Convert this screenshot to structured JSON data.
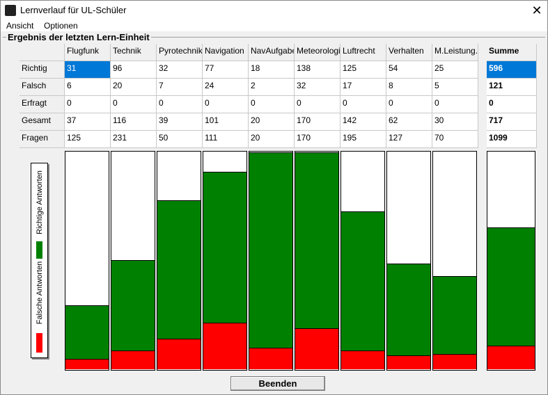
{
  "window": {
    "title": "Lernverlauf für UL-Schüler"
  },
  "menu": [
    "Ansicht",
    "Optionen"
  ],
  "group_title": "Ergebnis der letzten Lern-Einheit",
  "table": {
    "columns": [
      "Flugfunk",
      "Technik",
      "Pyrotechnik",
      "Navigation",
      "NavAufgabe",
      "Meteorologie",
      "Luftrecht",
      "Verhalten",
      "M.Leistung."
    ],
    "summe_header": "Summe",
    "rows": [
      {
        "label": "Richtig",
        "values": [
          31,
          96,
          32,
          77,
          18,
          138,
          125,
          54,
          25
        ],
        "sum": 596
      },
      {
        "label": "Falsch",
        "values": [
          6,
          20,
          7,
          24,
          2,
          32,
          17,
          8,
          5
        ],
        "sum": 121
      },
      {
        "label": "Erfragt",
        "values": [
          0,
          0,
          0,
          0,
          0,
          0,
          0,
          0,
          0
        ],
        "sum": 0
      },
      {
        "label": "Gesamt",
        "values": [
          37,
          116,
          39,
          101,
          20,
          170,
          142,
          62,
          30
        ],
        "sum": 717
      },
      {
        "label": "Fragen",
        "values": [
          125,
          231,
          50,
          111,
          20,
          170,
          195,
          127,
          70
        ],
        "sum": 1099
      }
    ]
  },
  "legend": [
    "Richtige Antworten",
    "Falsche Antworten"
  ],
  "button": "Beenden"
}
